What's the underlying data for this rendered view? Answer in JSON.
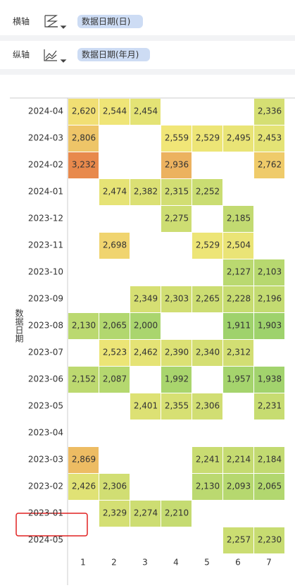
{
  "toolbar": {
    "x_label": "横轴",
    "x_field": "数据日期(日)",
    "y_label": "纵轴",
    "y_field": "数据日期(年月)"
  },
  "chart_data": {
    "type": "heatmap",
    "y_title": "数据日期",
    "rows": [
      "2024-04",
      "2024-03",
      "2024-02",
      "2024-01",
      "2023-12",
      "2023-11",
      "2023-10",
      "2023-09",
      "2023-08",
      "2023-07",
      "2023-06",
      "2023-05",
      "2023-04",
      "2023-03",
      "2023-02",
      "2023-01",
      "2024-05"
    ],
    "columns": [
      "1",
      "2",
      "3",
      "4",
      "5",
      "6",
      "7"
    ],
    "values": [
      [
        2620,
        2544,
        2454,
        null,
        null,
        null,
        2336
      ],
      [
        2806,
        null,
        null,
        2559,
        2529,
        2495,
        2453
      ],
      [
        3232,
        null,
        null,
        2936,
        null,
        null,
        2762
      ],
      [
        null,
        2474,
        2382,
        2315,
        2252,
        null,
        null
      ],
      [
        null,
        null,
        null,
        2275,
        null,
        2185,
        null
      ],
      [
        null,
        2698,
        null,
        null,
        2529,
        2504,
        null
      ],
      [
        null,
        null,
        null,
        null,
        null,
        2127,
        2103
      ],
      [
        null,
        null,
        2349,
        2303,
        2265,
        2228,
        2196
      ],
      [
        2130,
        2065,
        2000,
        null,
        null,
        1911,
        1903
      ],
      [
        null,
        2523,
        2462,
        2390,
        2340,
        2312,
        null
      ],
      [
        2152,
        2087,
        null,
        1992,
        null,
        1957,
        1938
      ],
      [
        null,
        null,
        2401,
        2355,
        2306,
        null,
        2231
      ],
      [
        null,
        null,
        null,
        null,
        null,
        null,
        null
      ],
      [
        2869,
        null,
        null,
        null,
        2241,
        2214,
        2184
      ],
      [
        2426,
        2306,
        null,
        null,
        2130,
        2093,
        2065
      ],
      [
        null,
        2329,
        2274,
        2210,
        null,
        null,
        null
      ],
      [
        null,
        null,
        null,
        null,
        null,
        2257,
        2230
      ]
    ],
    "value_labels": [
      [
        "2,620",
        "2,544",
        "2,454",
        null,
        null,
        null,
        "2,336"
      ],
      [
        "2,806",
        null,
        null,
        "2,559",
        "2,529",
        "2,495",
        "2,453"
      ],
      [
        "3,232",
        null,
        null,
        "2,936",
        null,
        null,
        "2,762"
      ],
      [
        null,
        "2,474",
        "2,382",
        "2,315",
        "2,252",
        null,
        null
      ],
      [
        null,
        null,
        null,
        "2,275",
        null,
        "2,185",
        null
      ],
      [
        null,
        "2,698",
        null,
        null,
        "2,529",
        "2,504",
        null
      ],
      [
        null,
        null,
        null,
        null,
        null,
        "2,127",
        "2,103"
      ],
      [
        null,
        null,
        "2,349",
        "2,303",
        "2,265",
        "2,228",
        "2,196"
      ],
      [
        "2,130",
        "2,065",
        "2,000",
        null,
        null,
        "1,911",
        "1,903"
      ],
      [
        null,
        "2,523",
        "2,462",
        "2,390",
        "2,340",
        "2,312",
        null
      ],
      [
        "2,152",
        "2,087",
        null,
        "1,992",
        null,
        "1,957",
        "1,938"
      ],
      [
        null,
        null,
        "2,401",
        "2,355",
        "2,306",
        null,
        "2,231"
      ],
      [
        null,
        null,
        null,
        null,
        null,
        null,
        null
      ],
      [
        "2,869",
        null,
        null,
        null,
        "2,241",
        "2,214",
        "2,184"
      ],
      [
        "2,426",
        "2,306",
        null,
        null,
        "2,130",
        "2,093",
        "2,065"
      ],
      [
        null,
        "2,329",
        "2,274",
        "2,210",
        null,
        null,
        null
      ],
      [
        null,
        null,
        null,
        null,
        null,
        "2,257",
        "2,230"
      ]
    ],
    "colors": [
      "#9ed26c",
      "#f2e677",
      "#e8894c"
    ]
  }
}
